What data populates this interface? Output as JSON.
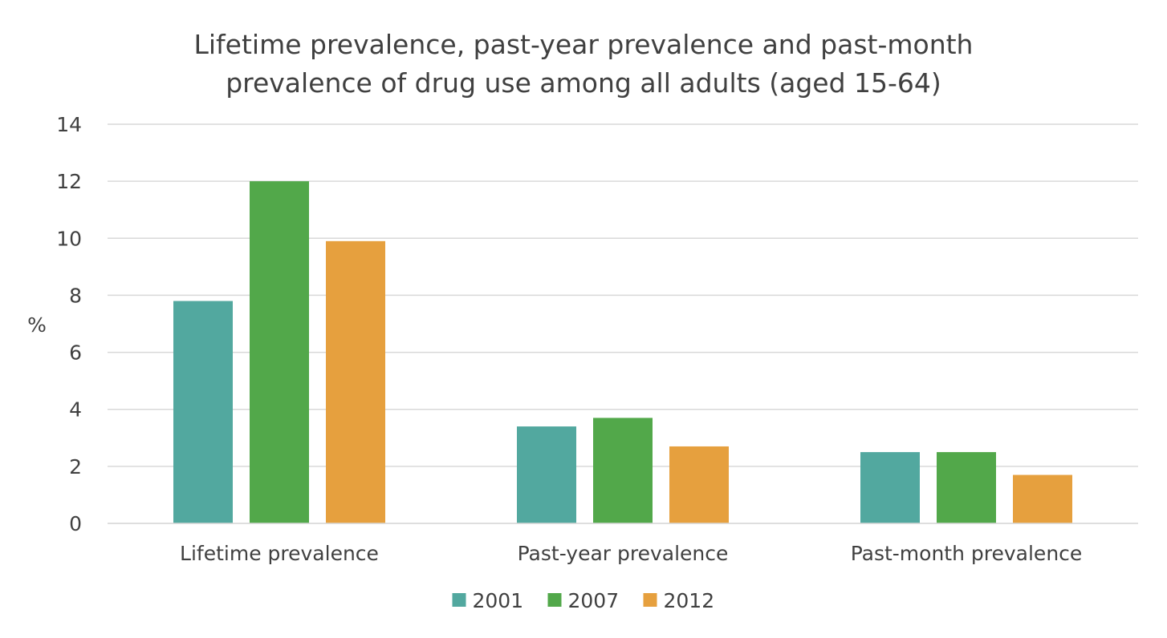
{
  "chart_data": {
    "type": "bar",
    "title_lines": [
      "Lifetime prevalence, past-year prevalence and past-month",
      "prevalence of drug use among all adults (aged 15-64)"
    ],
    "ylabel": "%",
    "xlabel": "",
    "ylim": [
      0,
      14
    ],
    "ytick_labels": [
      "0",
      "2",
      "4",
      "6",
      "8",
      "10",
      "12",
      "14"
    ],
    "categories": [
      "Lifetime prevalence",
      "Past-year prevalence",
      "Past-month prevalence"
    ],
    "series": [
      {
        "name": "2001",
        "color": "#52a89f",
        "values": [
          7.8,
          3.4,
          2.5
        ]
      },
      {
        "name": "2007",
        "color": "#52a84a",
        "values": [
          12.0,
          3.7,
          2.5
        ]
      },
      {
        "name": "2012",
        "color": "#e6a03e",
        "values": [
          9.9,
          2.7,
          1.7
        ]
      }
    ],
    "grid": "horizontal",
    "legend_position": "bottom"
  }
}
